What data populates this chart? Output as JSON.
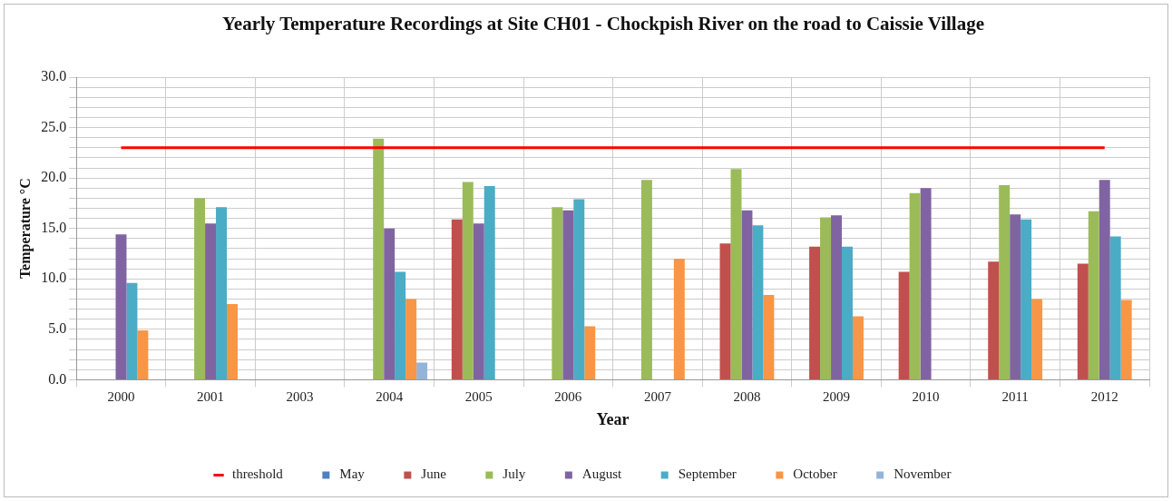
{
  "chart_data": {
    "type": "bar",
    "title": "Yearly Temperature Recordings at Site CH01 - Chockpish River on the road to Caissie Village",
    "xlabel": "Year",
    "ylabel": "Temperature °C",
    "categories": [
      "2000",
      "2001",
      "2003",
      "2004",
      "2005",
      "2006",
      "2007",
      "2008",
      "2009",
      "2010",
      "2011",
      "2012"
    ],
    "series": [
      {
        "name": "May",
        "color": "#4f81bd",
        "values": [
          null,
          null,
          null,
          null,
          null,
          null,
          null,
          null,
          null,
          null,
          null,
          null
        ]
      },
      {
        "name": "June",
        "color": "#c0504d",
        "values": [
          null,
          null,
          null,
          null,
          15.9,
          null,
          null,
          13.5,
          13.2,
          10.7,
          11.7,
          11.5
        ]
      },
      {
        "name": "July",
        "color": "#9bbb59",
        "values": [
          null,
          18.0,
          null,
          23.9,
          19.6,
          17.1,
          19.8,
          20.9,
          16.1,
          18.5,
          19.3,
          16.7
        ]
      },
      {
        "name": "August",
        "color": "#8064a2",
        "values": [
          14.4,
          15.5,
          null,
          15.0,
          15.5,
          16.8,
          null,
          16.8,
          16.3,
          19.0,
          16.4,
          19.8
        ]
      },
      {
        "name": "September",
        "color": "#4bacc6",
        "values": [
          9.6,
          17.1,
          null,
          10.7,
          19.2,
          17.9,
          null,
          15.3,
          13.2,
          null,
          15.9,
          14.2
        ]
      },
      {
        "name": "October",
        "color": "#f79646",
        "values": [
          4.9,
          7.5,
          null,
          8.0,
          null,
          5.3,
          12.0,
          8.4,
          6.3,
          null,
          8.0,
          7.9
        ]
      },
      {
        "name": "November",
        "color": "#95b3d7",
        "values": [
          null,
          null,
          null,
          1.7,
          null,
          null,
          null,
          null,
          null,
          null,
          null,
          null
        ]
      },
      {
        "name": "threshold",
        "type": "line",
        "color": "#ff0000",
        "values": [
          23,
          23,
          23,
          23,
          23,
          23,
          23,
          23,
          23,
          23,
          23,
          23
        ]
      }
    ],
    "ylim": [
      0,
      30
    ],
    "yticks": [
      {
        "value": 0,
        "label": "0.0"
      },
      {
        "value": 1,
        "label": null
      },
      {
        "value": 2,
        "label": null
      },
      {
        "value": 3,
        "label": null
      },
      {
        "value": 4,
        "label": null
      },
      {
        "value": 5,
        "label": "5.0"
      },
      {
        "value": 6,
        "label": null
      },
      {
        "value": 7,
        "label": null
      },
      {
        "value": 8,
        "label": null
      },
      {
        "value": 9,
        "label": null
      },
      {
        "value": 10,
        "label": "10.0"
      },
      {
        "value": 11,
        "label": null
      },
      {
        "value": 12,
        "label": null
      },
      {
        "value": 13,
        "label": null
      },
      {
        "value": 14,
        "label": null
      },
      {
        "value": 15,
        "label": "15.0"
      },
      {
        "value": 16,
        "label": null
      },
      {
        "value": 17,
        "label": null
      },
      {
        "value": 18,
        "label": null
      },
      {
        "value": 19,
        "label": null
      },
      {
        "value": 20,
        "label": "20.0"
      },
      {
        "value": 21,
        "label": null
      },
      {
        "value": 22,
        "label": null
      },
      {
        "value": 23,
        "label": null
      },
      {
        "value": 24,
        "label": null
      },
      {
        "value": 25,
        "label": "25.0"
      },
      {
        "value": 26,
        "label": null
      },
      {
        "value": 27,
        "label": null
      },
      {
        "value": 28,
        "label": null
      },
      {
        "value": 29,
        "label": null
      },
      {
        "value": 30,
        "label": "30.0"
      }
    ],
    "grid": true,
    "legend": "bottom",
    "marker": "none",
    "line_style": "solid"
  }
}
